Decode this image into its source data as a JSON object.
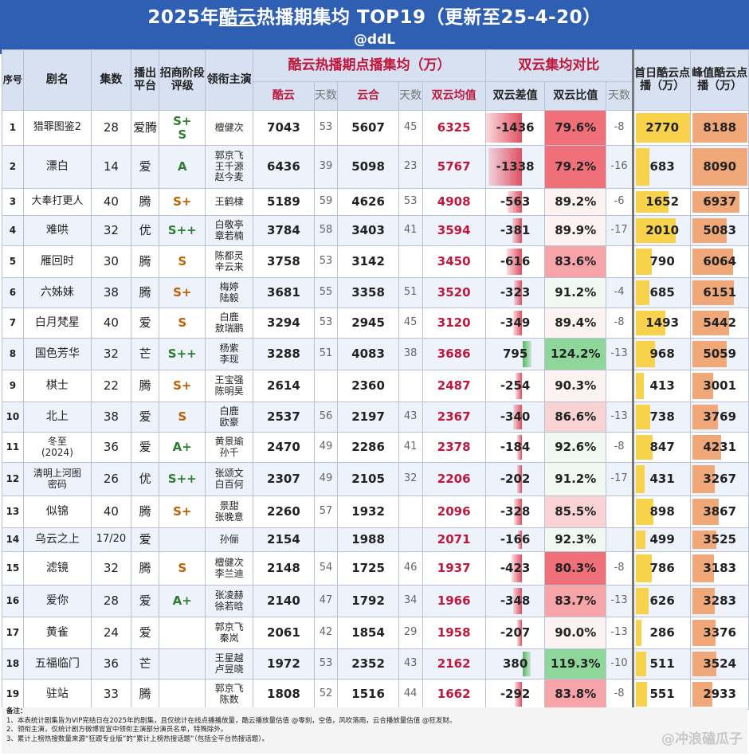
{
  "header": {
    "title_prefix": "2025年",
    "title_underlined": "酷云",
    "title_suffix": "热播期集均 TOP19（更新至25-4-20）",
    "handle": "@ddL"
  },
  "columns": {
    "seq": "序号",
    "name": "剧名",
    "episodes": "集数",
    "platform": "播出平台",
    "grade": "招商阶段评级",
    "lead": "领衔主演",
    "group_kuyun": "酷云热播期点播集均（万）",
    "group_compare": "双云集均对比",
    "first_day": "首日酷云点播（万）",
    "peak": "峰值酷云点播（万）",
    "kuyun": "酷云",
    "days": "天数",
    "yunhe": "云合",
    "days2": "天数",
    "avg": "双云均值",
    "diff": "双云差值",
    "ratio": "双云比值",
    "days3": "天数"
  },
  "rows": [
    {
      "seq": "1",
      "name": "猎罪图鉴2",
      "ep": "28",
      "plat": "爱腾",
      "grade": "S+\nS",
      "lead": "檀健次",
      "kuyun": "7043",
      "kd": "53",
      "yunhe": "5607",
      "yd": "45",
      "avg": "6325",
      "diff": "-1436",
      "ratio": "79.6%",
      "dd": "-8",
      "first": "2770",
      "peak": "8188"
    },
    {
      "seq": "2",
      "name": "漂白",
      "ep": "14",
      "plat": "爱",
      "grade": "A",
      "lead": "郭京飞\n王千源\n赵今麦",
      "kuyun": "6436",
      "kd": "39",
      "yunhe": "5098",
      "yd": "23",
      "avg": "5767",
      "diff": "-1338",
      "ratio": "79.2%",
      "dd": "-16",
      "first": "683",
      "peak": "8090"
    },
    {
      "seq": "3",
      "name": "大奉打更人",
      "ep": "40",
      "plat": "腾",
      "grade": "S+",
      "lead": "王鹤棣",
      "kuyun": "5189",
      "kd": "59",
      "yunhe": "4626",
      "yd": "53",
      "avg": "4908",
      "diff": "-563",
      "ratio": "89.2%",
      "dd": "-6",
      "first": "1652",
      "peak": "6937"
    },
    {
      "seq": "4",
      "name": "难哄",
      "ep": "32",
      "plat": "优",
      "grade": "S++",
      "lead": "白敬亭\n章若楠",
      "kuyun": "3784",
      "kd": "58",
      "yunhe": "3403",
      "yd": "41",
      "avg": "3594",
      "diff": "-381",
      "ratio": "89.9%",
      "dd": "-17",
      "first": "2010",
      "peak": "5083"
    },
    {
      "seq": "5",
      "name": "雁回时",
      "ep": "30",
      "plat": "腾",
      "grade": "S",
      "lead": "陈都灵\n辛云来",
      "kuyun": "3758",
      "kd": "53",
      "yunhe": "3142",
      "yd": "",
      "avg": "3450",
      "diff": "-616",
      "ratio": "83.6%",
      "dd": "",
      "first": "790",
      "peak": "6064"
    },
    {
      "seq": "6",
      "name": "六姊妹",
      "ep": "38",
      "plat": "腾",
      "grade": "S+",
      "lead": "梅婷\n陆毅",
      "kuyun": "3681",
      "kd": "55",
      "yunhe": "3358",
      "yd": "51",
      "avg": "3520",
      "diff": "-323",
      "ratio": "91.2%",
      "dd": "-4",
      "first": "685",
      "peak": "6151"
    },
    {
      "seq": "7",
      "name": "白月梵星",
      "ep": "40",
      "plat": "爱",
      "grade": "S",
      "lead": "白鹿\n敖瑞鹏",
      "kuyun": "3294",
      "kd": "53",
      "yunhe": "2945",
      "yd": "45",
      "avg": "3120",
      "diff": "-349",
      "ratio": "89.4%",
      "dd": "-8",
      "first": "1493",
      "peak": "5442"
    },
    {
      "seq": "8",
      "name": "国色芳华",
      "ep": "32",
      "plat": "芒",
      "grade": "S++",
      "lead": "杨紫\n李现",
      "kuyun": "3288",
      "kd": "51",
      "yunhe": "4083",
      "yd": "38",
      "avg": "3686",
      "diff": "795",
      "ratio": "124.2%",
      "dd": "-13",
      "first": "968",
      "peak": "5059"
    },
    {
      "seq": "9",
      "name": "棋士",
      "ep": "22",
      "plat": "腾",
      "grade": "S+",
      "lead": "王宝强\n陈明昊",
      "kuyun": "2614",
      "kd": "",
      "yunhe": "2360",
      "yd": "",
      "avg": "2487",
      "diff": "-254",
      "ratio": "90.3%",
      "dd": "",
      "first": "413",
      "peak": "3001"
    },
    {
      "seq": "10",
      "name": "北上",
      "ep": "38",
      "plat": "爱",
      "grade": "S",
      "lead": "白鹿\n欧豪",
      "kuyun": "2537",
      "kd": "56",
      "yunhe": "2197",
      "yd": "43",
      "avg": "2367",
      "diff": "-340",
      "ratio": "86.6%",
      "dd": "-13",
      "first": "738",
      "peak": "3769"
    },
    {
      "seq": "11",
      "name": "冬至\n(2024)",
      "ep": "36",
      "plat": "爱",
      "grade": "A+",
      "lead": "黄景瑜\n孙千",
      "kuyun": "2470",
      "kd": "49",
      "yunhe": "2286",
      "yd": "41",
      "avg": "2378",
      "diff": "-184",
      "ratio": "92.6%",
      "dd": "-8",
      "first": "847",
      "peak": "4231"
    },
    {
      "seq": "12",
      "name": "清明上河图\n密码",
      "ep": "26",
      "plat": "优",
      "grade": "S++",
      "lead": "张颂文\n白百何",
      "kuyun": "2307",
      "kd": "49",
      "yunhe": "2105",
      "yd": "32",
      "avg": "2206",
      "diff": "-202",
      "ratio": "91.2%",
      "dd": "-17",
      "first": "431",
      "peak": "3267"
    },
    {
      "seq": "13",
      "name": "似锦",
      "ep": "40",
      "plat": "腾",
      "grade": "S+",
      "lead": "景甜\n张晚意",
      "kuyun": "2260",
      "kd": "57",
      "yunhe": "1932",
      "yd": "",
      "avg": "2096",
      "diff": "-328",
      "ratio": "85.5%",
      "dd": "",
      "first": "898",
      "peak": "3867"
    },
    {
      "seq": "14",
      "name": "乌云之上",
      "ep": "17/20",
      "plat": "爱",
      "grade": "",
      "lead": "孙俪",
      "kuyun": "2154",
      "kd": "",
      "yunhe": "1988",
      "yd": "",
      "avg": "2071",
      "diff": "-166",
      "ratio": "92.3%",
      "dd": "",
      "first": "499",
      "peak": "3525"
    },
    {
      "seq": "15",
      "name": "滤镜",
      "ep": "32",
      "plat": "腾",
      "grade": "S",
      "lead": "檀健次\n李兰迪",
      "kuyun": "2148",
      "kd": "54",
      "yunhe": "1725",
      "yd": "46",
      "avg": "1937",
      "diff": "-423",
      "ratio": "80.3%",
      "dd": "-8",
      "first": "786",
      "peak": "3183"
    },
    {
      "seq": "16",
      "name": "爱你",
      "ep": "28",
      "plat": "爱",
      "grade": "A+",
      "lead": "张凌赫\n徐若晗",
      "kuyun": "2140",
      "kd": "47",
      "yunhe": "1792",
      "yd": "34",
      "avg": "1966",
      "diff": "-348",
      "ratio": "83.7%",
      "dd": "-13",
      "first": "626",
      "peak": "3283"
    },
    {
      "seq": "17",
      "name": "黄雀",
      "ep": "24",
      "plat": "爱",
      "grade": "",
      "lead": "郭京飞\n秦岚",
      "kuyun": "2061",
      "kd": "42",
      "yunhe": "1854",
      "yd": "29",
      "avg": "1958",
      "diff": "-207",
      "ratio": "90.0%",
      "dd": "-13",
      "first": "286",
      "peak": "3376"
    },
    {
      "seq": "18",
      "name": "五福临门",
      "ep": "36",
      "plat": "芒",
      "grade": "",
      "lead": "王星越\n卢昱晓",
      "kuyun": "1972",
      "kd": "53",
      "yunhe": "2352",
      "yd": "43",
      "avg": "2162",
      "diff": "380",
      "ratio": "119.3%",
      "dd": "-10",
      "first": "511",
      "peak": "3524"
    },
    {
      "seq": "19",
      "name": "驻站",
      "ep": "33",
      "plat": "腾",
      "grade": "",
      "lead": "郭京飞\n陈数",
      "kuyun": "1808",
      "kd": "52",
      "yunhe": "1516",
      "yd": "44",
      "avg": "1662",
      "diff": "-292",
      "ratio": "83.8%",
      "dd": "-8",
      "first": "551",
      "peak": "2933"
    }
  ],
  "notes": [
    "备注：",
    "1、本表统计剧集皆为VIP完结日在2025年的剧集，且仅统计在线点播播放量，酷云播放量估值 @零刻，空值，风吹落雨，云合播放量估值 @狂发财。",
    "2、领衔主演，仅统计剧方微博官宣中领衔主演部分演员名单，特殊除外。",
    "3、累计上榜热搜数量来源“狂跟专业版”的“累计上榜热搜话题”（包括全平台热搜话题）。"
  ],
  "watermark": "@冲浪磕瓜子",
  "colors": {
    "header_bg": "#2f5fb3",
    "accent_red": "#c0183c",
    "grade_green": "#2e7d32",
    "grade_orange": "#c06000",
    "first_bar": "#f8d24a",
    "peak_bar": "#f0a878"
  }
}
